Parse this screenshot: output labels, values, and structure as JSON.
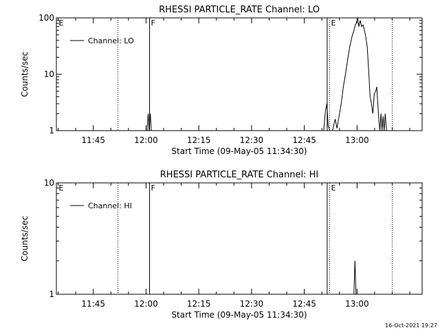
{
  "chart_data": [
    {
      "type": "line",
      "title": "RHESSI PARTICLE_RATE Channel: LO",
      "xlabel": "Start Time (09-May-05 11:34:30)",
      "ylabel": "Counts/sec",
      "yscale": "log",
      "ylim": [
        1,
        100
      ],
      "xlim_min_from_start": [
        0,
        104
      ],
      "xticks": [
        "11:45",
        "12:00",
        "12:15",
        "12:30",
        "12:45",
        "13:00"
      ],
      "xtick_minutes": [
        10.5,
        25.5,
        40.5,
        55.5,
        70.5,
        85.5
      ],
      "yticks": [
        "1",
        "10",
        "100"
      ],
      "yvals": [
        1,
        10,
        100
      ],
      "legend": "Channel: LO",
      "legend_position": "top-left",
      "markers": [
        {
          "label": "E",
          "minute": 0.3,
          "style": "label"
        },
        {
          "label": "",
          "minute": 17.5,
          "style": "dotted"
        },
        {
          "label": "F",
          "minute": 26.5,
          "style": "solid"
        },
        {
          "label": "",
          "minute": 77.0,
          "style": "solid"
        },
        {
          "label": "E",
          "minute": 77.7,
          "style": "dotted"
        },
        {
          "label": "",
          "minute": 95.5,
          "style": "dotted"
        }
      ],
      "series": [
        {
          "segments": [
            [
              [
                25.8,
                1
              ],
              [
                26.1,
                2
              ],
              [
                26.4,
                1
              ],
              [
                26.7,
                2
              ],
              [
                27.0,
                1
              ]
            ],
            [
              [
                76.0,
                1
              ],
              [
                76.5,
                2.2
              ],
              [
                76.9,
                3
              ],
              [
                77.3,
                1.2
              ],
              [
                77.8,
                1
              ],
              [
                78.5,
                1
              ],
              [
                79.3,
                1.6
              ],
              [
                79.8,
                1.1
              ],
              [
                80.5,
                2
              ],
              [
                81.0,
                3
              ],
              [
                81.6,
                6
              ],
              [
                82.2,
                10
              ],
              [
                82.8,
                18
              ],
              [
                83.4,
                30
              ],
              [
                84.0,
                45
              ],
              [
                84.6,
                60
              ],
              [
                85.0,
                75
              ],
              [
                85.3,
                80
              ],
              [
                85.7,
                100
              ],
              [
                86.0,
                70
              ],
              [
                86.4,
                90
              ],
              [
                86.8,
                70
              ],
              [
                87.2,
                75
              ],
              [
                87.6,
                60
              ],
              [
                88.0,
                45
              ],
              [
                88.4,
                30
              ],
              [
                88.8,
                12
              ],
              [
                89.2,
                4
              ],
              [
                89.6,
                3
              ],
              [
                90.0,
                2
              ],
              [
                90.4,
                4.5
              ],
              [
                90.8,
                5
              ],
              [
                91.1,
                6
              ],
              [
                91.4,
                3
              ],
              [
                91.7,
                1.5
              ],
              [
                92.0,
                1
              ],
              [
                92.3,
                2
              ],
              [
                92.6,
                1
              ],
              [
                92.9,
                1.8
              ],
              [
                93.2,
                1
              ],
              [
                93.5,
                2
              ],
              [
                93.9,
                1
              ],
              [
                94.3,
                1
              ]
            ]
          ]
        }
      ]
    },
    {
      "type": "line",
      "title": "RHESSI PARTICLE_RATE Channel: HI",
      "xlabel": "Start Time (09-May-05 11:34:30)",
      "ylabel": "Counts/sec",
      "yscale": "log",
      "ylim": [
        1,
        10
      ],
      "xlim_min_from_start": [
        0,
        104
      ],
      "xticks": [
        "11:45",
        "12:00",
        "12:15",
        "12:30",
        "12:45",
        "13:00"
      ],
      "xtick_minutes": [
        10.5,
        25.5,
        40.5,
        55.5,
        70.5,
        85.5
      ],
      "yticks": [
        "1",
        "10"
      ],
      "yvals": [
        1,
        10
      ],
      "legend": "Channel: HI",
      "legend_position": "top-left",
      "markers": [
        {
          "label": "E",
          "minute": 0.3,
          "style": "label"
        },
        {
          "label": "",
          "minute": 17.5,
          "style": "dotted"
        },
        {
          "label": "F",
          "minute": 26.5,
          "style": "solid"
        },
        {
          "label": "",
          "minute": 77.0,
          "style": "solid"
        },
        {
          "label": "E",
          "minute": 77.7,
          "style": "dotted"
        },
        {
          "label": "",
          "minute": 95.5,
          "style": "dotted"
        }
      ],
      "series": [
        {
          "segments": [
            [
              [
                84.6,
                1
              ],
              [
                84.9,
                2
              ],
              [
                85.2,
                1
              ]
            ]
          ]
        }
      ]
    }
  ],
  "footer": {
    "timestamp": "16-Oct-2021 19:27"
  }
}
